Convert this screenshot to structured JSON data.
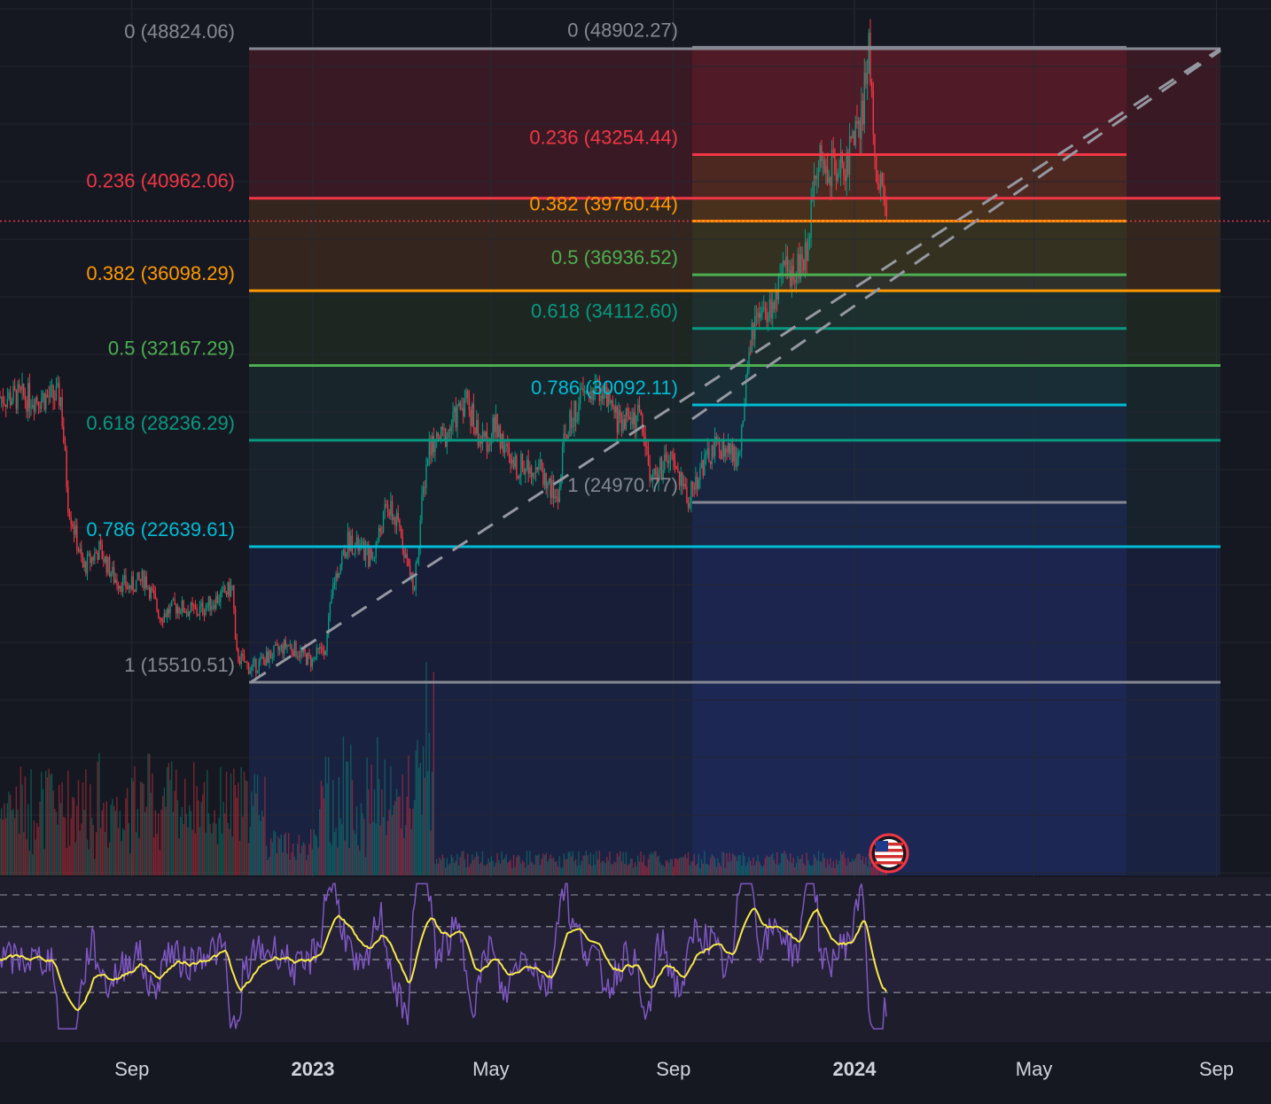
{
  "chart_data": {
    "type": "candlestick",
    "instrument_note": "",
    "x_axis": {
      "tick_labels": [
        "Sep",
        "2023",
        "May",
        "Sep",
        "2024",
        "May",
        "Sep"
      ],
      "bold_ticks": [
        "2023",
        "2024"
      ]
    },
    "price_axis": {
      "visible_range": [
        14000,
        50500
      ]
    },
    "candles_path": [
      [
        "2022-07-15",
        30500
      ],
      [
        "2022-07-20",
        25000
      ],
      [
        "2022-07-30",
        21500
      ],
      [
        "2022-08-10",
        22500
      ],
      [
        "2022-08-20",
        21000
      ],
      [
        "2022-08-30",
        20500
      ],
      [
        "2022-09-10",
        21000
      ],
      [
        "2022-09-20",
        19000
      ],
      [
        "2022-10-01",
        19500
      ],
      [
        "2022-10-15",
        19200
      ],
      [
        "2022-10-30",
        20000
      ],
      [
        "2022-11-08",
        20500
      ],
      [
        "2022-11-10",
        17000
      ],
      [
        "2022-11-20",
        16200
      ],
      [
        "2022-12-01",
        16800
      ],
      [
        "2022-12-15",
        17500
      ],
      [
        "2022-12-31",
        16600
      ],
      [
        "2023-01-10",
        17500
      ],
      [
        "2023-01-15",
        20800
      ],
      [
        "2023-01-25",
        23000
      ],
      [
        "2023-02-10",
        22000
      ],
      [
        "2023-02-20",
        24800
      ],
      [
        "2023-03-01",
        23500
      ],
      [
        "2023-03-10",
        20200
      ],
      [
        "2023-03-15",
        24500
      ],
      [
        "2023-03-20",
        28000
      ],
      [
        "2023-04-01",
        28500
      ],
      [
        "2023-04-14",
        30500
      ],
      [
        "2023-04-25",
        28000
      ],
      [
        "2023-05-05",
        29000
      ],
      [
        "2023-05-15",
        26800
      ],
      [
        "2023-06-01",
        27000
      ],
      [
        "2023-06-15",
        25000
      ],
      [
        "2023-06-20",
        28500
      ],
      [
        "2023-07-01",
        30500
      ],
      [
        "2023-07-13",
        31000
      ],
      [
        "2023-07-25",
        29300
      ],
      [
        "2023-08-10",
        29500
      ],
      [
        "2023-08-17",
        26200
      ],
      [
        "2023-08-30",
        27200
      ],
      [
        "2023-09-11",
        25200
      ],
      [
        "2023-09-20",
        26800
      ],
      [
        "2023-10-01",
        28000
      ],
      [
        "2023-10-15",
        27200
      ],
      [
        "2023-10-24",
        34000
      ],
      [
        "2023-11-05",
        35000
      ],
      [
        "2023-11-15",
        37000
      ],
      [
        "2023-11-30",
        37800
      ],
      [
        "2023-12-05",
        43000
      ],
      [
        "2023-12-15",
        42500
      ],
      [
        "2023-12-25",
        42800
      ],
      [
        "2024-01-05",
        44500
      ],
      [
        "2024-01-11",
        48900
      ],
      [
        "2024-01-15",
        43000
      ],
      [
        "2024-01-20",
        41500
      ],
      [
        "2024-01-23",
        39500
      ]
    ],
    "current_price_line": 39760.44,
    "fib_retracement_1": {
      "levels": [
        {
          "ratio": "0",
          "price": "48824.06",
          "label": "0 (48824.06)",
          "color": "#868993"
        },
        {
          "ratio": "0.236",
          "price": "40962.06",
          "label": "0.236 (40962.06)",
          "color": "#f23645"
        },
        {
          "ratio": "0.382",
          "price": "36098.29",
          "label": "0.382 (36098.29)",
          "color": "#ff9800"
        },
        {
          "ratio": "0.5",
          "price": "32167.29",
          "label": "0.5 (32167.29)",
          "color": "#4caf50"
        },
        {
          "ratio": "0.618",
          "price": "28236.29",
          "label": "0.618 (28236.29)",
          "color": "#089981"
        },
        {
          "ratio": "0.786",
          "price": "22639.61",
          "label": "0.786 (22639.61)",
          "color": "#00bcd4"
        },
        {
          "ratio": "1",
          "price": "15510.51",
          "label": "1 (15510.51)",
          "color": "#868993"
        }
      ]
    },
    "fib_retracement_2": {
      "levels": [
        {
          "ratio": "0",
          "price": "48902.27",
          "label": "0 (48902.27)",
          "color": "#868993"
        },
        {
          "ratio": "0.236",
          "price": "43254.44",
          "label": "0.236 (43254.44)",
          "color": "#f23645"
        },
        {
          "ratio": "0.382",
          "price": "39760.44",
          "label": "0.382 (39760.44)",
          "color": "#ff9800"
        },
        {
          "ratio": "0.5",
          "price": "36936.52",
          "label": "0.5 (36936.52)",
          "color": "#4caf50"
        },
        {
          "ratio": "0.618",
          "price": "34112.60",
          "label": "0.618 (34112.60)",
          "color": "#089981"
        },
        {
          "ratio": "0.786",
          "price": "30092.11",
          "label": "0.786 (30092.11)",
          "color": "#00bcd4"
        },
        {
          "ratio": "1",
          "price": "24970.77",
          "label": "1 (24970.77)",
          "color": "#868993"
        }
      ]
    },
    "trendline": {
      "style": "dashed",
      "color": "#9598a1"
    },
    "volume": {
      "shown": true
    },
    "rsi": {
      "shown": true,
      "bands": [
        30,
        50,
        70
      ],
      "rsi_color": "#7e57c2",
      "ma_color": "#f7e94a"
    },
    "grid": true,
    "event_marker": {
      "icon": "us-flag-icon"
    }
  }
}
